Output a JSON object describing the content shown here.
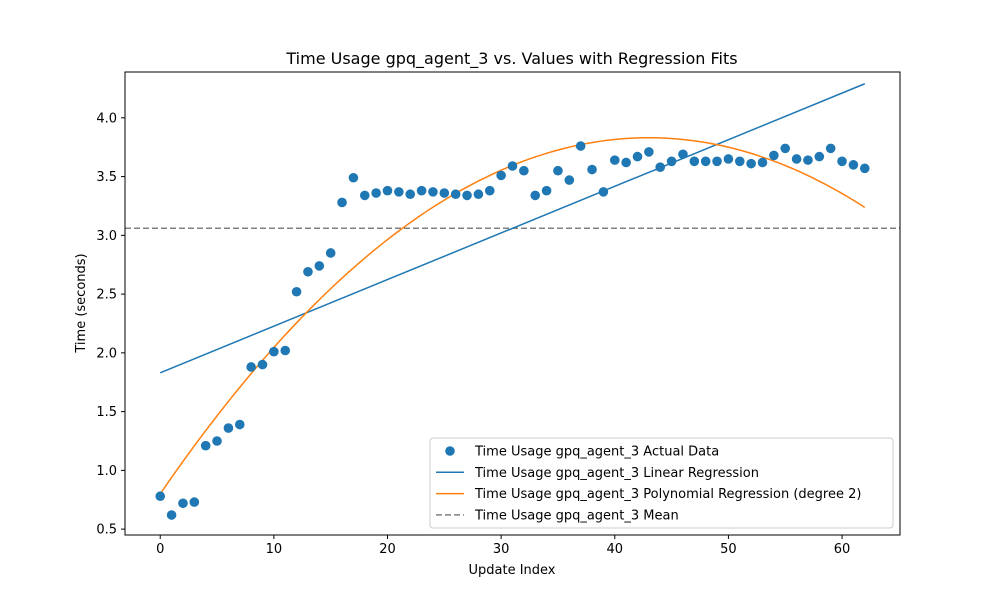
{
  "chart_data": {
    "type": "scatter",
    "title": "Time Usage gpq_agent_3 vs. Values with Regression Fits",
    "xlabel": "Update Index",
    "ylabel": "Time (seconds)",
    "xlim": [
      -3.1,
      65.1
    ],
    "ylim": [
      0.45,
      4.39
    ],
    "xticks": [
      0,
      10,
      20,
      30,
      40,
      50,
      60
    ],
    "yticks": [
      0.5,
      1.0,
      1.5,
      2.0,
      2.5,
      3.0,
      3.5,
      4.0
    ],
    "grid": false,
    "legend_position": "lower-right",
    "series": [
      {
        "name": "Time Usage gpq_agent_3 Actual Data",
        "kind": "scatter",
        "color": "#1f77b4",
        "x": [
          0,
          1,
          2,
          3,
          4,
          5,
          6,
          7,
          8,
          9,
          10,
          11,
          12,
          13,
          14,
          15,
          16,
          17,
          18,
          19,
          20,
          21,
          22,
          23,
          24,
          25,
          26,
          27,
          28,
          29,
          30,
          31,
          32,
          33,
          34,
          35,
          36,
          37,
          38,
          39,
          40,
          41,
          42,
          43,
          44,
          45,
          46,
          47,
          48,
          49,
          50,
          51,
          52,
          53,
          54,
          55,
          56,
          57,
          58,
          59,
          60,
          61,
          62
        ],
        "y": [
          0.78,
          0.62,
          0.72,
          0.73,
          1.21,
          1.25,
          1.36,
          1.39,
          1.88,
          1.9,
          2.01,
          2.02,
          2.52,
          2.69,
          2.74,
          2.85,
          3.28,
          3.49,
          3.34,
          3.36,
          3.38,
          3.37,
          3.35,
          3.38,
          3.37,
          3.36,
          3.35,
          3.34,
          3.35,
          3.38,
          3.51,
          3.59,
          3.55,
          3.34,
          3.38,
          3.55,
          3.47,
          3.76,
          3.56,
          3.37,
          3.64,
          3.62,
          3.67,
          3.71,
          3.58,
          3.63,
          3.69,
          3.63,
          3.63,
          3.63,
          3.65,
          3.63,
          3.61,
          3.62,
          3.68,
          3.74,
          3.65,
          3.64,
          3.67,
          3.74,
          3.63,
          3.6,
          3.57
        ]
      },
      {
        "name": "Time Usage gpq_agent_3 Linear Regression",
        "kind": "line",
        "color": "#1f77b4",
        "x": [
          0,
          62
        ],
        "y": [
          1.83,
          4.29
        ]
      },
      {
        "name": "Time Usage gpq_agent_3 Polynomial Regression (degree 2)",
        "kind": "poly2",
        "color": "#ff7f0e",
        "x_range": [
          0,
          62
        ],
        "coefficients": [
          0.8,
          0.141,
          -0.00164
        ]
      },
      {
        "name": "Time Usage gpq_agent_3 Mean",
        "kind": "hline",
        "color": "#808080",
        "y": 3.06
      }
    ]
  }
}
